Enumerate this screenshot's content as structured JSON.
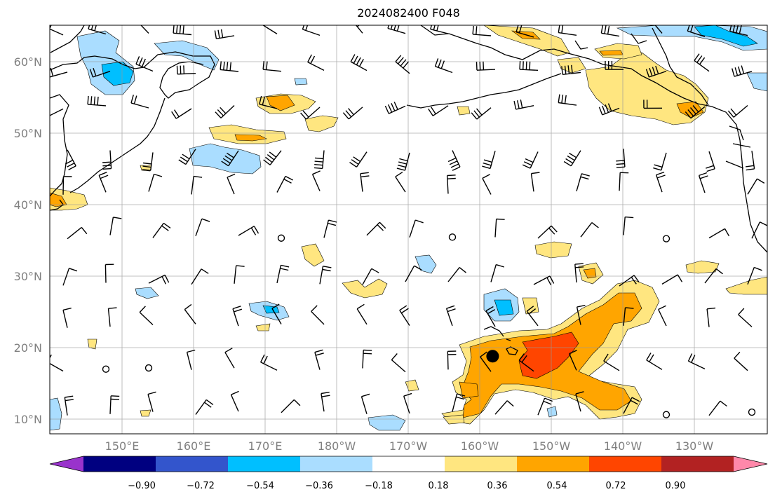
{
  "title": "2024082400 F048",
  "map": {
    "lat_labels": [
      "60°N",
      "50°N",
      "40°N",
      "30°N",
      "20°N",
      "10°N"
    ],
    "lon_labels": [
      "150°E",
      "160°E",
      "170°E",
      "180°W",
      "170°W",
      "160°W",
      "150°W",
      "140°W",
      "130°W"
    ],
    "marker": {
      "lon": -158.2,
      "lat": 18.8,
      "color": "#000000"
    }
  },
  "colorbar": {
    "colors": [
      "#9933cc",
      "#000080",
      "#3355cc",
      "#00bfff",
      "#aaddff",
      "#ffffff",
      "#ffe680",
      "#ffa500",
      "#ff4500",
      "#b22222",
      "#ff88aa"
    ],
    "tick_labels": [
      "−0.90",
      "−0.72",
      "−0.54",
      "−0.36",
      "−0.18",
      "0.18",
      "0.36",
      "0.54",
      "0.72",
      "0.90"
    ]
  }
}
